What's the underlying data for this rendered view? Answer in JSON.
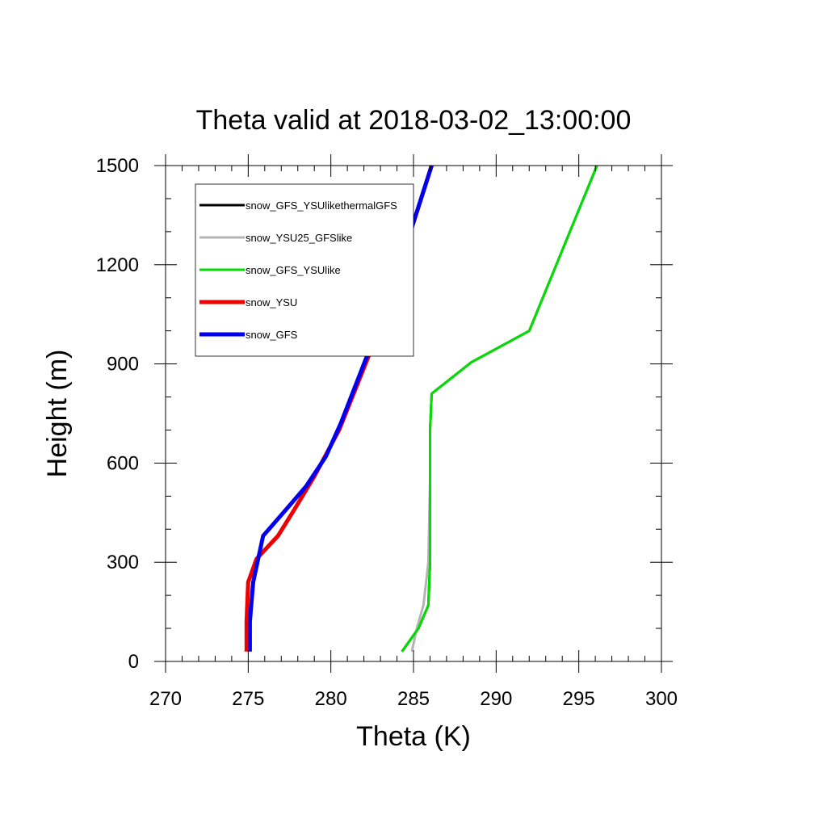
{
  "chart_data": {
    "type": "line",
    "title": "Theta valid at 2018-03-02_13:00:00",
    "xlabel": "Theta (K)",
    "ylabel": "Height (m)",
    "xlim": [
      270,
      300
    ],
    "ylim": [
      0,
      1500
    ],
    "xticks": [
      270,
      275,
      280,
      285,
      290,
      295,
      300
    ],
    "yticks": [
      0,
      300,
      600,
      900,
      1200,
      1500
    ],
    "xtick_labels": [
      "270",
      "275",
      "280",
      "285",
      "290",
      "295",
      "300"
    ],
    "ytick_labels": [
      "0",
      "300",
      "600",
      "900",
      "1200",
      "1500"
    ],
    "grid": false,
    "legend_position": "top-left",
    "series": [
      {
        "name": "snow_GFS_YSUlikethermalGFS",
        "color": "#000000",
        "x": [
          284.3,
          285.3,
          285.9,
          286.0,
          286.0,
          286.0,
          286.1,
          288.5,
          292.0,
          296.1
        ],
        "y": [
          30,
          100,
          170,
          300,
          550,
          700,
          810,
          905,
          1000,
          1500
        ]
      },
      {
        "name": "snow_YSU25_GFSlike",
        "color": "#b4b4b4",
        "x": [
          284.9,
          285.2,
          285.6,
          285.9,
          286.0,
          286.0,
          286.1,
          288.5,
          292.0,
          296.1
        ],
        "y": [
          30,
          100,
          170,
          300,
          550,
          700,
          810,
          905,
          1000,
          1500
        ]
      },
      {
        "name": "snow_GFS_YSUlike",
        "color": "#00dd00",
        "x": [
          284.3,
          285.3,
          285.9,
          286.0,
          286.0,
          286.0,
          286.1,
          288.5,
          292.0,
          296.1
        ],
        "y": [
          30,
          100,
          170,
          300,
          550,
          700,
          810,
          905,
          1000,
          1500
        ]
      },
      {
        "name": "snow_YSU",
        "color": "#ee0000",
        "x": [
          274.9,
          274.9,
          275.0,
          275.5,
          276.8,
          277.8,
          279.0,
          280.5,
          282.5,
          284.5,
          286.1
        ],
        "y": [
          30,
          120,
          240,
          310,
          380,
          460,
          560,
          700,
          950,
          1250,
          1500
        ]
      },
      {
        "name": "snow_GFS",
        "color": "#0000ee",
        "x": [
          275.1,
          275.1,
          275.3,
          275.9,
          277.3,
          278.5,
          279.7,
          280.6,
          282.7,
          284.5,
          286.1
        ],
        "y": [
          30,
          120,
          240,
          380,
          460,
          530,
          620,
          720,
          990,
          1250,
          1500
        ]
      }
    ]
  }
}
